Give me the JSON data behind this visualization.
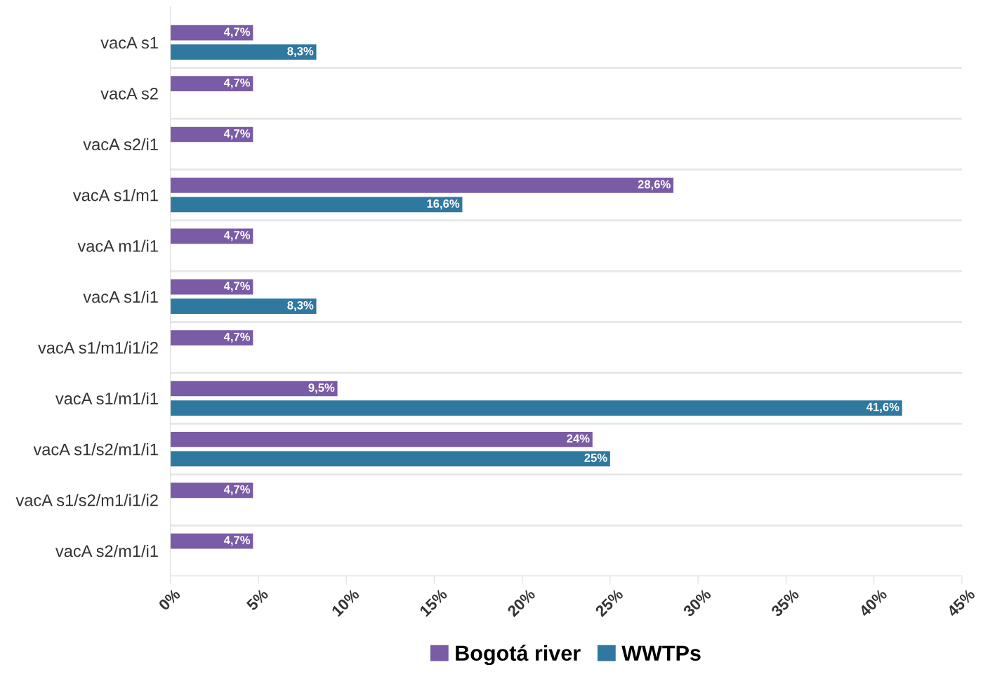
{
  "chart_data": {
    "type": "bar",
    "orientation": "horizontal",
    "categories": [
      "vacA s1",
      "vacA s2",
      "vacA s2/i1",
      "vacA s1/m1",
      "vacA m1/i1",
      "vacA s1/i1",
      "vacA s1/m1/i1/i2",
      "vacA s1/m1/i1",
      "vacA s1/s2/m1/i1",
      "vacA s1/s2/m1/i1/i2",
      "vacA s2/m1/i1"
    ],
    "series": [
      {
        "name": "Bogotá river",
        "color": "#7a5ba6",
        "values": [
          4.7,
          4.7,
          4.7,
          28.6,
          4.7,
          4.7,
          4.7,
          9.5,
          24,
          4.7,
          4.7
        ],
        "value_labels": [
          "4,7%",
          "4,7%",
          "4,7%",
          "28,6%",
          "4,7%",
          "4,7%",
          "4,7%",
          "9,5%",
          "24%",
          "4,7%",
          "4,7%"
        ]
      },
      {
        "name": "WWTPs",
        "color": "#2f78a0",
        "values": [
          8.3,
          null,
          null,
          16.6,
          null,
          8.3,
          null,
          41.6,
          25,
          null,
          null
        ],
        "value_labels": [
          "8,3%",
          null,
          null,
          "16,6%",
          null,
          "8,3%",
          null,
          "41,6%",
          "25%",
          null,
          null
        ]
      }
    ],
    "xlim": [
      0,
      45
    ],
    "xticks": [
      {
        "value": 0,
        "label": "0%"
      },
      {
        "value": 5,
        "label": "5%"
      },
      {
        "value": 10,
        "label": "10%"
      },
      {
        "value": 15,
        "label": "15%"
      },
      {
        "value": 20,
        "label": "20%"
      },
      {
        "value": 25,
        "label": "25%"
      },
      {
        "value": 30,
        "label": "30%"
      },
      {
        "value": 35,
        "label": "35%"
      },
      {
        "value": 40,
        "label": "40%"
      },
      {
        "value": 45,
        "label": "45%"
      }
    ],
    "legend": "bottom"
  }
}
